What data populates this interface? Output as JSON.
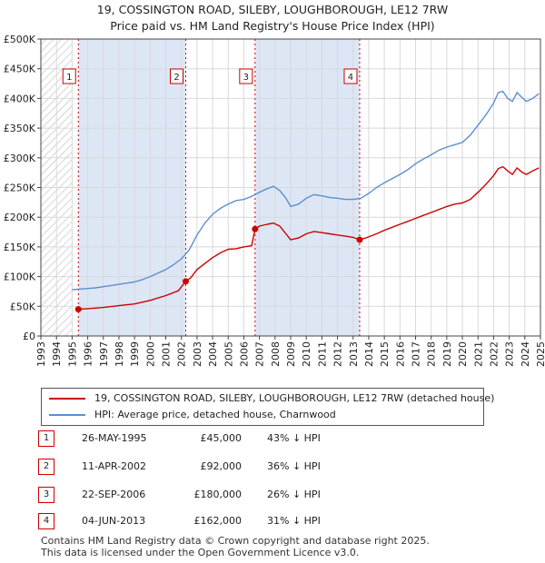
{
  "title_line1": "19, COSSINGTON ROAD, SILEBY, LOUGHBOROUGH, LE12 7RW",
  "title_line2": "Price paid vs. HM Land Registry's House Price Index (HPI)",
  "colors": {
    "price": "#cc0000",
    "hpi": "#5b8fd0",
    "shade": "#dde6f5",
    "marker": "#cc0000"
  },
  "chart_data": {
    "type": "line",
    "title": "Price paid vs. HM Land Registry's House Price Index (HPI)",
    "xlabel": "",
    "ylabel": "",
    "xlim": [
      1993,
      2025
    ],
    "ylim": [
      0,
      500000
    ],
    "x_ticks": [
      "1993",
      "1994",
      "1995",
      "1996",
      "1997",
      "1998",
      "1999",
      "2000",
      "2001",
      "2002",
      "2003",
      "2004",
      "2005",
      "2006",
      "2007",
      "2008",
      "2009",
      "2010",
      "2011",
      "2012",
      "2013",
      "2014",
      "2015",
      "2016",
      "2017",
      "2018",
      "2019",
      "2020",
      "2021",
      "2022",
      "2023",
      "2024",
      "2025"
    ],
    "y_ticks": [
      {
        "value": 0,
        "label": "£0"
      },
      {
        "value": 50000,
        "label": "£50K"
      },
      {
        "value": 100000,
        "label": "£100K"
      },
      {
        "value": 150000,
        "label": "£150K"
      },
      {
        "value": 200000,
        "label": "£200K"
      },
      {
        "value": 250000,
        "label": "£250K"
      },
      {
        "value": 300000,
        "label": "£300K"
      },
      {
        "value": 350000,
        "label": "£350K"
      },
      {
        "value": 400000,
        "label": "£400K"
      },
      {
        "value": 450000,
        "label": "£450K"
      },
      {
        "value": 500000,
        "label": "£500K"
      }
    ],
    "shaded_ranges": [
      [
        1995.4,
        2002.28
      ],
      [
        2006.72,
        2013.42
      ]
    ],
    "hatched_range": [
      1993,
      1995.0
    ],
    "series": [
      {
        "name": "19, COSSINGTON ROAD, SILEBY, LOUGHBOROUGH, LE12 7RW (detached house)",
        "color": "#cc0000",
        "points": [
          [
            1995.4,
            45000
          ],
          [
            1996.0,
            46000
          ],
          [
            1997.0,
            48000
          ],
          [
            1998.0,
            51000
          ],
          [
            1999.0,
            54000
          ],
          [
            2000.0,
            60000
          ],
          [
            2001.0,
            68000
          ],
          [
            2001.8,
            76000
          ],
          [
            2002.28,
            92000
          ],
          [
            2002.6,
            98000
          ],
          [
            2003.0,
            112000
          ],
          [
            2003.5,
            122000
          ],
          [
            2004.0,
            132000
          ],
          [
            2004.5,
            140000
          ],
          [
            2005.0,
            146000
          ],
          [
            2005.5,
            147000
          ],
          [
            2006.0,
            150000
          ],
          [
            2006.5,
            152000
          ],
          [
            2006.72,
            180000
          ],
          [
            2007.0,
            185000
          ],
          [
            2007.5,
            188000
          ],
          [
            2007.9,
            190000
          ],
          [
            2008.3,
            185000
          ],
          [
            2008.7,
            172000
          ],
          [
            2009.0,
            162000
          ],
          [
            2009.5,
            165000
          ],
          [
            2010.0,
            172000
          ],
          [
            2010.5,
            176000
          ],
          [
            2011.0,
            174000
          ],
          [
            2011.5,
            172000
          ],
          [
            2012.0,
            170000
          ],
          [
            2012.5,
            168000
          ],
          [
            2013.0,
            166000
          ],
          [
            2013.42,
            162000
          ],
          [
            2013.8,
            165000
          ],
          [
            2014.5,
            172000
          ],
          [
            2015.0,
            178000
          ],
          [
            2015.5,
            183000
          ],
          [
            2016.0,
            188000
          ],
          [
            2016.5,
            193000
          ],
          [
            2017.0,
            198000
          ],
          [
            2017.5,
            203000
          ],
          [
            2018.0,
            208000
          ],
          [
            2018.5,
            213000
          ],
          [
            2019.0,
            218000
          ],
          [
            2019.5,
            222000
          ],
          [
            2020.0,
            224000
          ],
          [
            2020.5,
            230000
          ],
          [
            2021.0,
            242000
          ],
          [
            2021.5,
            255000
          ],
          [
            2022.0,
            270000
          ],
          [
            2022.3,
            282000
          ],
          [
            2022.6,
            285000
          ],
          [
            2022.9,
            278000
          ],
          [
            2023.2,
            272000
          ],
          [
            2023.5,
            283000
          ],
          [
            2023.8,
            276000
          ],
          [
            2024.1,
            272000
          ],
          [
            2024.5,
            278000
          ],
          [
            2024.9,
            283000
          ]
        ]
      },
      {
        "name": "HPI: Average price, detached house, Charnwood",
        "color": "#5b8fd0",
        "points": [
          [
            1995.0,
            78000
          ],
          [
            1995.5,
            79000
          ],
          [
            1996.0,
            80000
          ],
          [
            1996.5,
            81000
          ],
          [
            1997.0,
            83000
          ],
          [
            1997.5,
            85000
          ],
          [
            1998.0,
            87000
          ],
          [
            1998.5,
            89000
          ],
          [
            1999.0,
            91000
          ],
          [
            1999.5,
            95000
          ],
          [
            2000.0,
            100000
          ],
          [
            2000.5,
            106000
          ],
          [
            2001.0,
            112000
          ],
          [
            2001.5,
            120000
          ],
          [
            2002.0,
            130000
          ],
          [
            2002.5,
            145000
          ],
          [
            2003.0,
            170000
          ],
          [
            2003.5,
            190000
          ],
          [
            2004.0,
            205000
          ],
          [
            2004.5,
            215000
          ],
          [
            2005.0,
            222000
          ],
          [
            2005.5,
            228000
          ],
          [
            2006.0,
            230000
          ],
          [
            2006.5,
            235000
          ],
          [
            2007.0,
            242000
          ],
          [
            2007.5,
            248000
          ],
          [
            2007.9,
            252000
          ],
          [
            2008.3,
            245000
          ],
          [
            2008.7,
            232000
          ],
          [
            2009.0,
            218000
          ],
          [
            2009.5,
            222000
          ],
          [
            2010.0,
            232000
          ],
          [
            2010.5,
            238000
          ],
          [
            2011.0,
            236000
          ],
          [
            2011.5,
            233000
          ],
          [
            2012.0,
            232000
          ],
          [
            2012.5,
            230000
          ],
          [
            2013.0,
            230000
          ],
          [
            2013.5,
            232000
          ],
          [
            2014.0,
            240000
          ],
          [
            2014.5,
            250000
          ],
          [
            2015.0,
            258000
          ],
          [
            2015.5,
            265000
          ],
          [
            2016.0,
            272000
          ],
          [
            2016.5,
            280000
          ],
          [
            2017.0,
            290000
          ],
          [
            2017.5,
            298000
          ],
          [
            2018.0,
            305000
          ],
          [
            2018.5,
            313000
          ],
          [
            2019.0,
            318000
          ],
          [
            2019.5,
            322000
          ],
          [
            2020.0,
            326000
          ],
          [
            2020.5,
            338000
          ],
          [
            2021.0,
            355000
          ],
          [
            2021.5,
            372000
          ],
          [
            2022.0,
            392000
          ],
          [
            2022.3,
            410000
          ],
          [
            2022.6,
            412000
          ],
          [
            2022.9,
            400000
          ],
          [
            2023.2,
            395000
          ],
          [
            2023.5,
            410000
          ],
          [
            2023.8,
            402000
          ],
          [
            2024.1,
            395000
          ],
          [
            2024.5,
            400000
          ],
          [
            2024.9,
            408000
          ]
        ]
      }
    ],
    "markers": [
      {
        "label": "1",
        "x": 1995.4,
        "y": 45000
      },
      {
        "label": "2",
        "x": 2002.28,
        "y": 92000
      },
      {
        "label": "3",
        "x": 2006.72,
        "y": 180000
      },
      {
        "label": "4",
        "x": 2013.42,
        "y": 162000
      }
    ]
  },
  "legend": {
    "price_label": "19, COSSINGTON ROAD, SILEBY, LOUGHBOROUGH, LE12 7RW (detached house)",
    "hpi_label": "HPI: Average price, detached house, Charnwood"
  },
  "sales": [
    {
      "num": "1",
      "date": "26-MAY-1995",
      "price": "£45,000",
      "hpi": "43% ↓ HPI"
    },
    {
      "num": "2",
      "date": "11-APR-2002",
      "price": "£92,000",
      "hpi": "36% ↓ HPI"
    },
    {
      "num": "3",
      "date": "22-SEP-2006",
      "price": "£180,000",
      "hpi": "26% ↓ HPI"
    },
    {
      "num": "4",
      "date": "04-JUN-2013",
      "price": "£162,000",
      "hpi": "31% ↓ HPI"
    }
  ],
  "footer_line1": "Contains HM Land Registry data © Crown copyright and database right 2025.",
  "footer_line2": "This data is licensed under the Open Government Licence v3.0."
}
